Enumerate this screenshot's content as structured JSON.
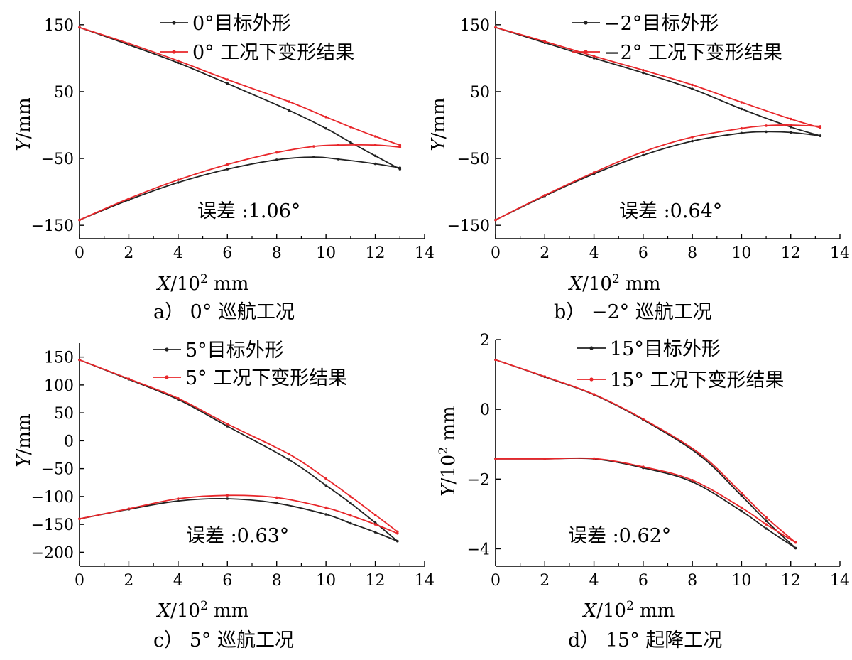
{
  "chart_data": [
    {
      "type": "line",
      "caption": "a） 0°  巡航工况",
      "xlabel": {
        "var": "X",
        "rest": "/10",
        "exp": "2",
        "unit": " mm"
      },
      "ylabel": {
        "var": "Y",
        "rest": "/mm",
        "exp": "",
        "unit": ""
      },
      "xlim": [
        0,
        14
      ],
      "ylim": [
        -170,
        170
      ],
      "xticks": [
        0,
        2,
        4,
        6,
        8,
        10,
        12,
        14
      ],
      "xtick_labels": [
        "0",
        "2",
        "4",
        "6",
        "8",
        "10",
        "12",
        "14"
      ],
      "yticks": [
        150,
        50,
        -50,
        -150
      ],
      "ytick_labels": [
        "150",
        "50",
        "−50",
        "−150"
      ],
      "error_text": "误差 :1.06°",
      "series": [
        {
          "name": "0°目标外形",
          "color": "#222222",
          "upper": {
            "x": [
              0,
              2,
              4,
              6,
              8.5,
              10,
              11,
              12,
              13
            ],
            "y": [
              146,
              120,
              93,
              62,
              22,
              -5,
              -26,
              -46,
              -66
            ]
          },
          "lower": {
            "x": [
              0,
              2,
              4,
              6,
              8,
              9.5,
              10.5,
              12,
              13
            ],
            "y": [
              -142,
              -112,
              -86,
              -66,
              -52,
              -48,
              -51,
              -58,
              -64
            ]
          }
        },
        {
          "name": "0° 工况下变形结果",
          "color": "#e8262a",
          "upper": {
            "x": [
              0,
              2,
              4,
              6,
              8.5,
              10,
              11,
              12,
              13
            ],
            "y": [
              146,
              122,
              96,
              68,
              35,
              12,
              -3,
              -17,
              -30
            ]
          },
          "lower": {
            "x": [
              0,
              2,
              4,
              6,
              8,
              9.5,
              10.5,
              12,
              13
            ],
            "y": [
              -142,
              -110,
              -82,
              -59,
              -41,
              -32,
              -30,
              -30,
              -33
            ]
          }
        }
      ]
    },
    {
      "type": "line",
      "caption": "b） −2°  巡航工况",
      "xlabel": {
        "var": "X",
        "rest": "/10",
        "exp": "2",
        "unit": " mm"
      },
      "ylabel": {
        "var": "Y",
        "rest": "/mm",
        "exp": "",
        "unit": ""
      },
      "xlim": [
        0,
        14
      ],
      "ylim": [
        -170,
        170
      ],
      "xticks": [
        0,
        2,
        4,
        6,
        8,
        10,
        12,
        14
      ],
      "xtick_labels": [
        "0",
        "2",
        "4",
        "6",
        "8",
        "10",
        "12",
        "14"
      ],
      "yticks": [
        150,
        50,
        -50,
        -150
      ],
      "ytick_labels": [
        "150",
        "50",
        "−50",
        "−150"
      ],
      "error_text": "误差 :0.64°",
      "series": [
        {
          "name": "−2°目标外形",
          "color": "#222222",
          "upper": {
            "x": [
              0,
              2,
              4,
              6,
              8,
              10,
              12,
              13.2
            ],
            "y": [
              146,
              123,
              100,
              78,
              54,
              24,
              -3,
              -16
            ]
          },
          "lower": {
            "x": [
              0,
              2,
              4,
              6,
              8,
              10,
              11,
              12,
              13.2
            ],
            "y": [
              -142,
              -106,
              -73,
              -45,
              -24,
              -12,
              -10,
              -11,
              -16
            ]
          }
        },
        {
          "name": "−2° 工况下变形结果",
          "color": "#e8262a",
          "upper": {
            "x": [
              0,
              2,
              4,
              6,
              8,
              10,
              12,
              13.2
            ],
            "y": [
              146,
              125,
              103,
              82,
              60,
              34,
              9,
              -4
            ]
          },
          "lower": {
            "x": [
              0,
              2,
              4,
              6,
              8,
              10,
              11,
              12,
              13.2
            ],
            "y": [
              -142,
              -105,
              -71,
              -40,
              -18,
              -5,
              -1,
              0,
              -2
            ]
          }
        }
      ]
    },
    {
      "type": "line",
      "caption": "c） 5°  巡航工况",
      "xlabel": {
        "var": "X",
        "rest": "/10",
        "exp": "2",
        "unit": " mm"
      },
      "ylabel": {
        "var": "Y",
        "rest": "/mm",
        "exp": "",
        "unit": ""
      },
      "xlim": [
        0,
        14
      ],
      "ylim": [
        -225,
        175
      ],
      "xticks": [
        0,
        2,
        4,
        6,
        8,
        10,
        12,
        14
      ],
      "xtick_labels": [
        "0",
        "2",
        "4",
        "6",
        "8",
        "10",
        "12",
        "14"
      ],
      "yticks": [
        150,
        100,
        50,
        0,
        -50,
        -100,
        -150,
        -200
      ],
      "ytick_labels": [
        "150",
        "100",
        "50",
        "0",
        "−50",
        "−100",
        "−150",
        "−200"
      ],
      "error_text": "误差 :0.63°",
      "series": [
        {
          "name": "5°目标外形",
          "color": "#222222",
          "upper": {
            "x": [
              0,
              2,
              4,
              6,
              8.5,
              10,
              11,
              12,
              12.9
            ],
            "y": [
              145,
              110,
              74,
              26,
              -34,
              -80,
              -112,
              -147,
              -180
            ]
          },
          "lower": {
            "x": [
              0,
              2,
              4,
              6,
              8,
              10,
              11,
              12,
              12.9
            ],
            "y": [
              -140,
              -123,
              -108,
              -104,
              -112,
              -132,
              -148,
              -164,
              -180
            ]
          }
        },
        {
          "name": "5° 工况下变形结果",
          "color": "#e8262a",
          "upper": {
            "x": [
              0,
              2,
              4,
              6,
              8.5,
              10,
              11,
              12,
              12.9
            ],
            "y": [
              145,
              111,
              76,
              30,
              -24,
              -68,
              -100,
              -133,
              -163
            ]
          },
          "lower": {
            "x": [
              0,
              2,
              4,
              6,
              8,
              10,
              11,
              12,
              12.9
            ],
            "y": [
              -140,
              -122,
              -104,
              -98,
              -102,
              -120,
              -134,
              -150,
              -166
            ]
          }
        }
      ]
    },
    {
      "type": "line",
      "caption": "d） 15°  起降工况",
      "xlabel": {
        "var": "X",
        "rest": "/10",
        "exp": "2",
        "unit": " mm"
      },
      "ylabel": {
        "var": "Y",
        "rest": "/10",
        "exp": "2",
        "unit": " mm"
      },
      "xlim": [
        0,
        14
      ],
      "ylim": [
        -4.5,
        2.0
      ],
      "xticks": [
        0,
        2,
        4,
        6,
        8,
        10,
        12,
        14
      ],
      "xtick_labels": [
        "0",
        "2",
        "4",
        "6",
        "8",
        "10",
        "12",
        "14"
      ],
      "yticks": [
        2,
        0,
        -2,
        -4
      ],
      "ytick_labels": [
        "2",
        "0",
        "−2",
        "−4"
      ],
      "error_text": "误差 :0.62°",
      "series": [
        {
          "name": "15°目标外形",
          "color": "#222222",
          "upper": {
            "x": [
              0,
              2,
              4,
              6,
              8.3,
              10,
              11,
              12.2
            ],
            "y": [
              1.42,
              0.93,
              0.42,
              -0.3,
              -1.32,
              -2.48,
              -3.2,
              -3.98
            ]
          },
          "lower": {
            "x": [
              0,
              2,
              4,
              6,
              8,
              10,
              11,
              12.2
            ],
            "y": [
              -1.42,
              -1.42,
              -1.42,
              -1.68,
              -2.08,
              -2.92,
              -3.42,
              -3.98
            ]
          }
        },
        {
          "name": "15° 工况下变形结果",
          "color": "#e8262a",
          "upper": {
            "x": [
              0,
              2,
              4,
              6,
              8.3,
              10,
              11,
              12.2
            ],
            "y": [
              1.42,
              0.94,
              0.43,
              -0.28,
              -1.27,
              -2.4,
              -3.1,
              -3.82
            ]
          },
          "lower": {
            "x": [
              0,
              2,
              4,
              6,
              8,
              10,
              11,
              12.2
            ],
            "y": [
              -1.42,
              -1.42,
              -1.41,
              -1.65,
              -2.03,
              -2.82,
              -3.3,
              -3.82
            ]
          }
        }
      ]
    }
  ]
}
